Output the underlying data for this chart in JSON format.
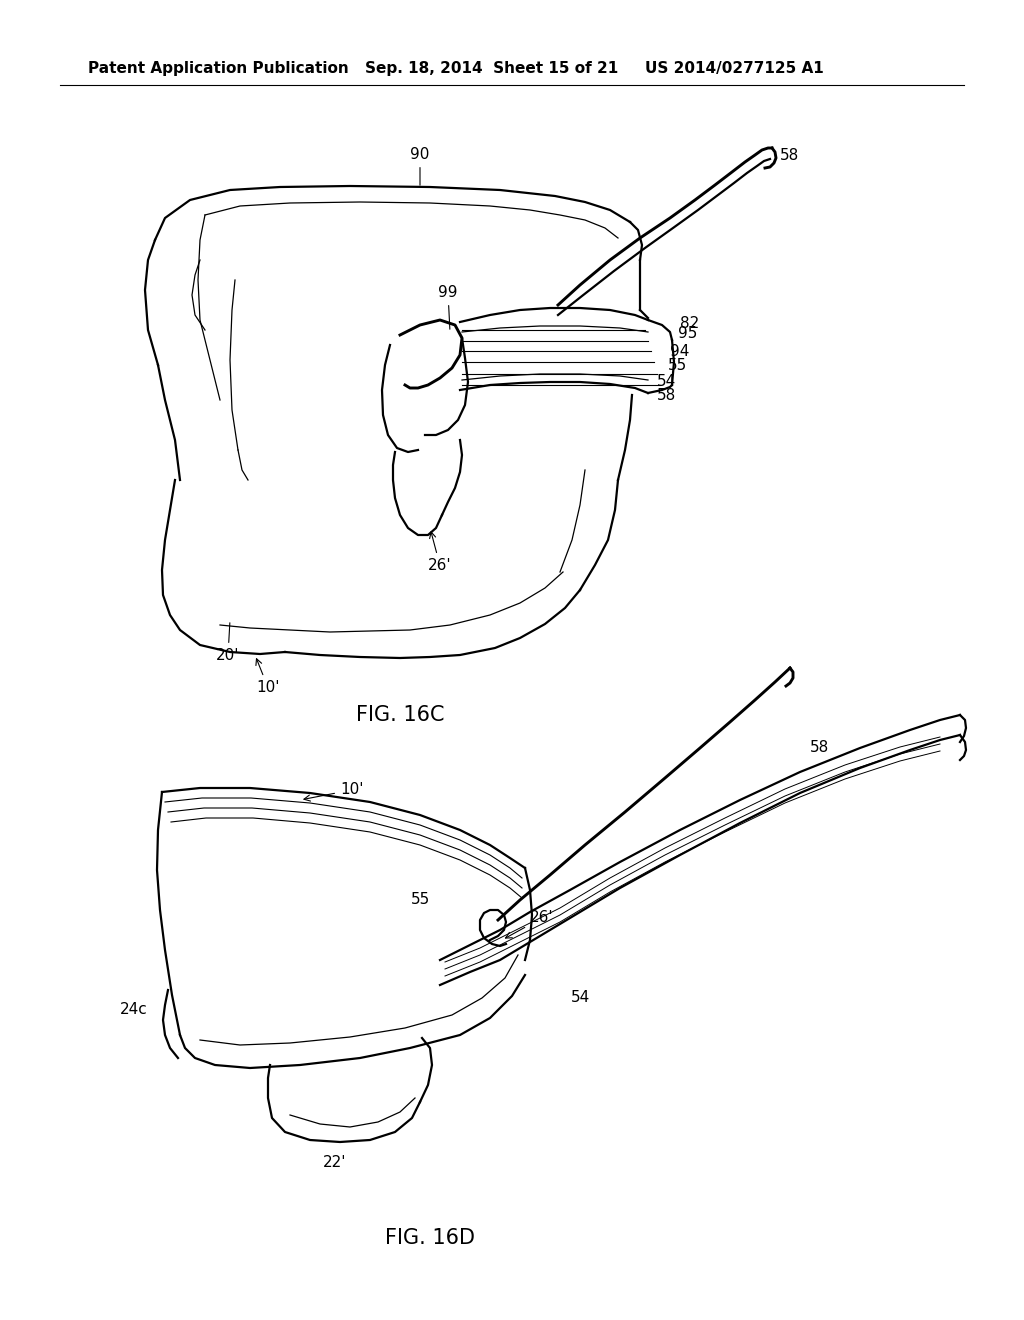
{
  "bg_color": "#ffffff",
  "header_left": "Patent Application Publication",
  "header_center": "Sep. 18, 2014  Sheet 15 of 21",
  "header_right": "US 2014/0277125 A1",
  "fig_16c_label": "FIG. 16C",
  "fig_16d_label": "FIG. 16D",
  "line_color": "#000000",
  "lw": 1.6,
  "tlw": 0.9,
  "fs": 11,
  "header_fontsize": 11,
  "fig_label_fontsize": 15
}
